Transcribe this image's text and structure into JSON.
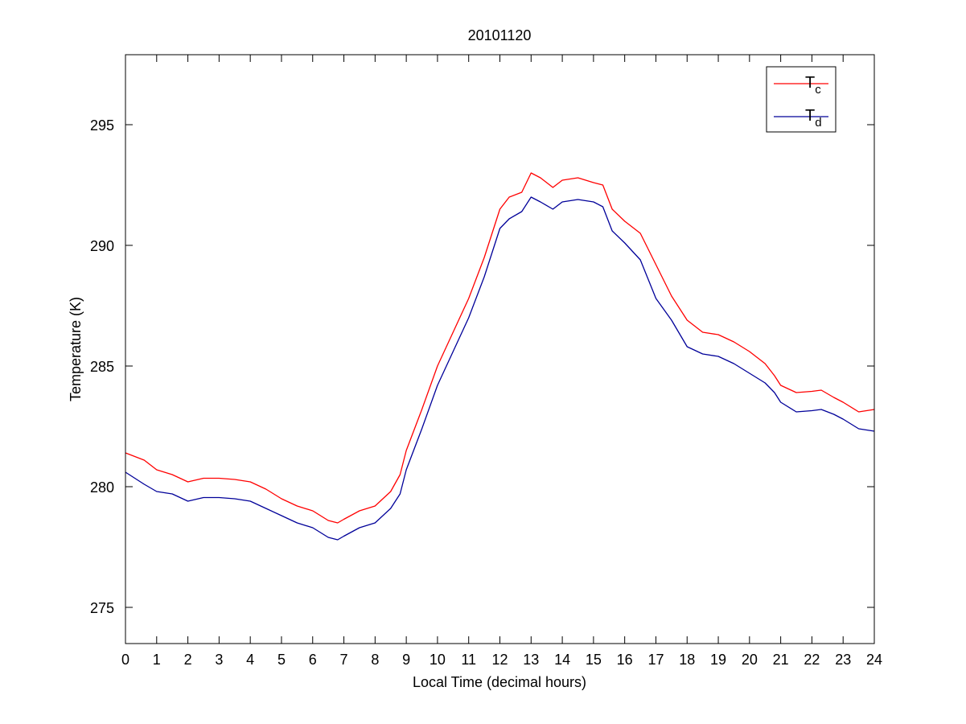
{
  "chart_data": {
    "type": "line",
    "title": "20101120",
    "xlabel": "Local Time (decimal hours)",
    "ylabel": "Temperature (K)",
    "xlim": [
      0,
      24
    ],
    "ylim": [
      273.5,
      297.9
    ],
    "xticks": [
      0,
      1,
      2,
      3,
      4,
      5,
      6,
      7,
      8,
      9,
      10,
      11,
      12,
      13,
      14,
      15,
      16,
      17,
      18,
      19,
      20,
      21,
      22,
      23,
      24
    ],
    "yticks": [
      275,
      280,
      285,
      290,
      295
    ],
    "grid": false,
    "legend": "top-right",
    "series": [
      {
        "name": "T",
        "subscript": "c",
        "color": "#ff0000",
        "points": [
          [
            0,
            281.4
          ],
          [
            0.6,
            281.1
          ],
          [
            1,
            280.7
          ],
          [
            1.5,
            280.5
          ],
          [
            2,
            280.2
          ],
          [
            2.5,
            280.35
          ],
          [
            3,
            280.35
          ],
          [
            3.5,
            280.3
          ],
          [
            4,
            280.2
          ],
          [
            4.5,
            279.9
          ],
          [
            5,
            279.5
          ],
          [
            5.5,
            279.2
          ],
          [
            6,
            279.0
          ],
          [
            6.5,
            278.6
          ],
          [
            6.8,
            278.5
          ],
          [
            7,
            278.65
          ],
          [
            7.5,
            279.0
          ],
          [
            8,
            279.2
          ],
          [
            8.5,
            279.8
          ],
          [
            8.8,
            280.5
          ],
          [
            9,
            281.5
          ],
          [
            9.5,
            283.2
          ],
          [
            10,
            285.0
          ],
          [
            10.5,
            286.4
          ],
          [
            11,
            287.8
          ],
          [
            11.5,
            289.5
          ],
          [
            12,
            291.5
          ],
          [
            12.3,
            292.0
          ],
          [
            12.7,
            292.2
          ],
          [
            13,
            293.0
          ],
          [
            13.3,
            292.8
          ],
          [
            13.7,
            292.4
          ],
          [
            14,
            292.7
          ],
          [
            14.5,
            292.8
          ],
          [
            15,
            292.6
          ],
          [
            15.3,
            292.5
          ],
          [
            15.6,
            291.5
          ],
          [
            16,
            291.0
          ],
          [
            16.5,
            290.5
          ],
          [
            17,
            289.2
          ],
          [
            17.5,
            287.9
          ],
          [
            18,
            286.9
          ],
          [
            18.5,
            286.4
          ],
          [
            19,
            286.3
          ],
          [
            19.5,
            286.0
          ],
          [
            20,
            285.6
          ],
          [
            20.5,
            285.1
          ],
          [
            20.8,
            284.6
          ],
          [
            21,
            284.2
          ],
          [
            21.5,
            283.9
          ],
          [
            22,
            283.95
          ],
          [
            22.3,
            284.0
          ],
          [
            22.7,
            283.7
          ],
          [
            23,
            283.5
          ],
          [
            23.5,
            283.1
          ],
          [
            24,
            283.2
          ]
        ]
      },
      {
        "name": "T",
        "subscript": "d",
        "color": "#000099",
        "points": [
          [
            0,
            280.6
          ],
          [
            0.6,
            280.1
          ],
          [
            1,
            279.8
          ],
          [
            1.5,
            279.7
          ],
          [
            2,
            279.4
          ],
          [
            2.5,
            279.55
          ],
          [
            3,
            279.55
          ],
          [
            3.5,
            279.5
          ],
          [
            4,
            279.4
          ],
          [
            4.5,
            279.1
          ],
          [
            5,
            278.8
          ],
          [
            5.5,
            278.5
          ],
          [
            6,
            278.3
          ],
          [
            6.5,
            277.9
          ],
          [
            6.8,
            277.8
          ],
          [
            7,
            277.95
          ],
          [
            7.5,
            278.3
          ],
          [
            8,
            278.5
          ],
          [
            8.5,
            279.1
          ],
          [
            8.8,
            279.7
          ],
          [
            9,
            280.7
          ],
          [
            9.5,
            282.4
          ],
          [
            10,
            284.2
          ],
          [
            10.5,
            285.6
          ],
          [
            11,
            287.0
          ],
          [
            11.5,
            288.7
          ],
          [
            12,
            290.7
          ],
          [
            12.3,
            291.1
          ],
          [
            12.7,
            291.4
          ],
          [
            13,
            292.0
          ],
          [
            13.3,
            291.8
          ],
          [
            13.7,
            291.5
          ],
          [
            14,
            291.8
          ],
          [
            14.5,
            291.9
          ],
          [
            15,
            291.8
          ],
          [
            15.3,
            291.6
          ],
          [
            15.6,
            290.6
          ],
          [
            16,
            290.1
          ],
          [
            16.5,
            289.4
          ],
          [
            17,
            287.8
          ],
          [
            17.5,
            286.9
          ],
          [
            18,
            285.8
          ],
          [
            18.5,
            285.5
          ],
          [
            19,
            285.4
          ],
          [
            19.5,
            285.1
          ],
          [
            20,
            284.7
          ],
          [
            20.5,
            284.3
          ],
          [
            20.8,
            283.9
          ],
          [
            21,
            283.5
          ],
          [
            21.5,
            283.1
          ],
          [
            22,
            283.15
          ],
          [
            22.3,
            283.2
          ],
          [
            22.7,
            283.0
          ],
          [
            23,
            282.8
          ],
          [
            23.5,
            282.4
          ],
          [
            24,
            282.3
          ]
        ]
      }
    ]
  }
}
